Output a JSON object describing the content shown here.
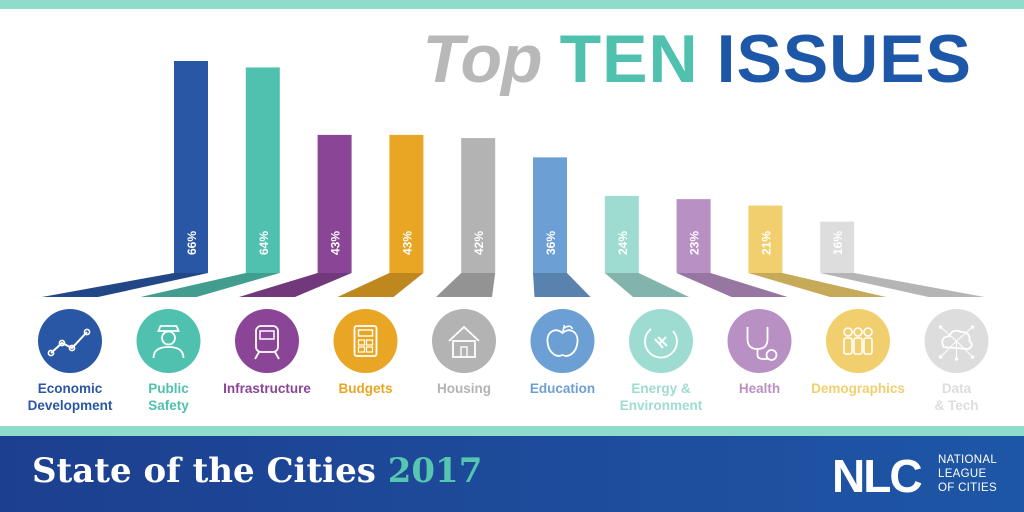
{
  "title": {
    "part1": "Top",
    "part2": "TEN",
    "part3": "ISSUES"
  },
  "footer": {
    "title": "State of the Cities",
    "year": "2017"
  },
  "logo": {
    "mark": "NLC",
    "line1": "NATIONAL",
    "line2": "LEAGUE",
    "line3": "OF CITIES"
  },
  "colors": {
    "teal": "#4fc1ae",
    "blue": "#1f57a8",
    "gray": "#b8b8b8",
    "stripe": "#8fdccd",
    "footer_start": "#1d3f8f",
    "footer_end": "#1e56a6"
  },
  "chart_data": {
    "type": "bar",
    "categories": [
      {
        "line1": "Economic",
        "line2": "Development"
      },
      {
        "line1": "Public",
        "line2": "Safety"
      },
      {
        "line1": "Infrastructure",
        "line2": ""
      },
      {
        "line1": "Budgets",
        "line2": ""
      },
      {
        "line1": "Housing",
        "line2": ""
      },
      {
        "line1": "Education",
        "line2": ""
      },
      {
        "line1": "Energy &",
        "line2": "Environment"
      },
      {
        "line1": "Health",
        "line2": ""
      },
      {
        "line1": "Demographics",
        "line2": ""
      },
      {
        "line1": "Data",
        "line2": "& Tech"
      }
    ],
    "values": [
      66,
      64,
      43,
      43,
      42,
      36,
      24,
      23,
      21,
      16
    ],
    "value_labels": [
      "66%",
      "64%",
      "43%",
      "43%",
      "42%",
      "36%",
      "24%",
      "23%",
      "21%",
      "16%"
    ],
    "colors": [
      "#2a57a5",
      "#4fc1ae",
      "#8a4596",
      "#e8a624",
      "#b3b3b3",
      "#6c9fd4",
      "#9edcd1",
      "#b890c4",
      "#f2cf6e",
      "#dddddd"
    ],
    "icons": [
      "line-chart-icon",
      "police-officer-icon",
      "train-icon",
      "calculator-icon",
      "house-icon",
      "apple-icon",
      "power-plug-icon",
      "stethoscope-icon",
      "people-group-icon",
      "cloud-network-icon"
    ],
    "ylim": [
      0,
      66
    ]
  }
}
